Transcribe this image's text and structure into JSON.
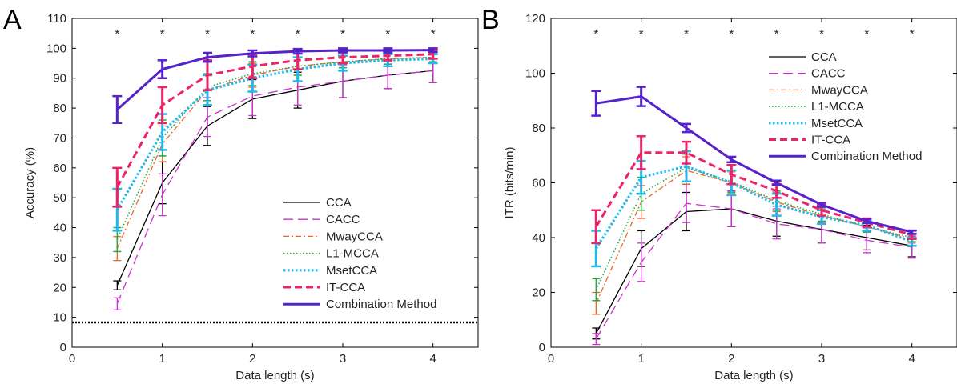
{
  "chart_data": [
    {
      "type": "line",
      "panel_label": "A",
      "xlabel": "Data length (s)",
      "ylabel": "Accuracy (%)",
      "xlim": [
        0,
        4.5
      ],
      "ylim": [
        0,
        110
      ],
      "xticks": [
        0,
        1,
        2,
        3,
        4
      ],
      "yticks": [
        0,
        10,
        20,
        30,
        40,
        50,
        60,
        70,
        80,
        90,
        100,
        110
      ],
      "x": [
        0.5,
        1,
        1.5,
        2,
        2.5,
        3,
        3.5,
        4
      ],
      "significance_marks": [
        "*",
        "*",
        "*",
        "*",
        "*",
        "*",
        "*",
        "*"
      ],
      "chance_level": 8.3,
      "legend_position": "bottom-right",
      "series": [
        {
          "name": "CCA",
          "color": "#000000",
          "dash": "solid",
          "width": 1.3,
          "values": [
            20.7,
            55,
            74,
            83,
            86,
            89,
            91,
            92.5
          ],
          "errors": [
            1.5,
            7,
            6.5,
            6.5,
            6,
            5.5,
            4.5,
            4
          ]
        },
        {
          "name": "CACC",
          "color": "#cc33cc",
          "dash": "longdash",
          "width": 1.3,
          "values": [
            14.5,
            51,
            77,
            84,
            87,
            89,
            91,
            92.5
          ],
          "errors": [
            2,
            7,
            6.5,
            6.5,
            6,
            5.5,
            4.5,
            4
          ]
        },
        {
          "name": "MwayCCA",
          "color": "#ee6622",
          "dash": "dashdot",
          "width": 1.3,
          "values": [
            33,
            68,
            86,
            91,
            94,
            95.5,
            96.5,
            97
          ],
          "errors": [
            4,
            6,
            5,
            4,
            3,
            2,
            1.8,
            1.5
          ]
        },
        {
          "name": "L1-MCCA",
          "color": "#22aa44",
          "dash": "dotted",
          "width": 1.5,
          "values": [
            36,
            70,
            87,
            91.5,
            94,
            95.5,
            96.5,
            97
          ],
          "errors": [
            4,
            6,
            4.5,
            4,
            3,
            2,
            1.8,
            1.5
          ]
        },
        {
          "name": "MsetCCA",
          "color": "#22b8ee",
          "dash": "thickdot",
          "width": 3.2,
          "values": [
            46,
            72,
            86,
            90,
            93,
            95,
            96,
            96.5
          ],
          "errors": [
            7,
            6,
            5,
            4.5,
            4,
            2.5,
            2,
            1.5
          ]
        },
        {
          "name": "IT-CCA",
          "color": "#ee2266",
          "dash": "dashed",
          "width": 3,
          "values": [
            53.5,
            81,
            91,
            94,
            96,
            97,
            97.5,
            98
          ],
          "errors": [
            6.5,
            6,
            5,
            4,
            3,
            2,
            1.5,
            1.5
          ]
        },
        {
          "name": "Combination Method",
          "color": "#5522cc",
          "dash": "solid",
          "width": 3,
          "values": [
            79.5,
            93,
            97,
            98.3,
            99,
            99.3,
            99.3,
            99.4
          ],
          "errors": [
            4.5,
            3,
            1.5,
            1,
            0.8,
            0.7,
            0.7,
            0.6
          ]
        }
      ]
    },
    {
      "type": "line",
      "panel_label": "B",
      "xlabel": "Data length (s)",
      "ylabel": "ITR (bits/min)",
      "xlim": [
        0,
        4.5
      ],
      "ylim": [
        0,
        120
      ],
      "xticks": [
        0,
        1,
        2,
        3,
        4
      ],
      "yticks": [
        0,
        20,
        40,
        60,
        80,
        100,
        120
      ],
      "x": [
        0.5,
        1,
        1.5,
        2,
        2.5,
        3,
        3.5,
        4
      ],
      "significance_marks": [
        "*",
        "*",
        "*",
        "*",
        "*",
        "*",
        "*",
        "*"
      ],
      "legend_position": "top-right",
      "series": [
        {
          "name": "CCA",
          "color": "#000000",
          "dash": "solid",
          "width": 1.3,
          "values": [
            5,
            36,
            49.5,
            50.5,
            46,
            43,
            40,
            37
          ],
          "errors": [
            2,
            6.5,
            7,
            6.5,
            5.5,
            5,
            4.5,
            4
          ]
        },
        {
          "name": "CACC",
          "color": "#cc33cc",
          "dash": "longdash",
          "width": 1.3,
          "values": [
            3,
            31,
            52.5,
            50.5,
            45,
            43,
            39,
            36.5
          ],
          "errors": [
            2,
            7,
            7,
            6.5,
            5.5,
            5,
            4.5,
            4
          ]
        },
        {
          "name": "MwayCCA",
          "color": "#ee6622",
          "dash": "dashdot",
          "width": 1.3,
          "values": [
            16,
            53,
            64.5,
            60,
            53,
            48,
            44,
            39.5
          ],
          "errors": [
            4,
            6,
            5,
            4,
            3.5,
            2.5,
            2,
            1.5
          ]
        },
        {
          "name": "L1-MCCA",
          "color": "#22aa44",
          "dash": "dotted",
          "width": 1.5,
          "values": [
            21,
            56,
            65.5,
            60.5,
            53.5,
            48.5,
            44,
            40
          ],
          "errors": [
            4,
            6,
            5,
            4,
            3.5,
            2.5,
            2,
            1.5
          ]
        },
        {
          "name": "MsetCCA",
          "color": "#22b8ee",
          "dash": "thickdot",
          "width": 3.2,
          "values": [
            36,
            62,
            66,
            60,
            52,
            47.5,
            44.5,
            38.5
          ],
          "errors": [
            6.5,
            6,
            5.5,
            4.5,
            4,
            2.5,
            2,
            1.5
          ]
        },
        {
          "name": "IT-CCA",
          "color": "#ee2266",
          "dash": "dashed",
          "width": 3,
          "values": [
            44,
            71,
            71,
            63,
            57,
            50,
            45.5,
            41
          ],
          "errors": [
            6,
            6,
            4,
            3.5,
            2.5,
            2,
            1.5,
            1.5
          ]
        },
        {
          "name": "Combination Method",
          "color": "#5522cc",
          "dash": "solid",
          "width": 3,
          "values": [
            89,
            91.5,
            80,
            68.5,
            60,
            52,
            46,
            42
          ],
          "errors": [
            4.5,
            3.5,
            1.5,
            1,
            0.8,
            0.7,
            0.7,
            0.6
          ]
        }
      ]
    }
  ]
}
